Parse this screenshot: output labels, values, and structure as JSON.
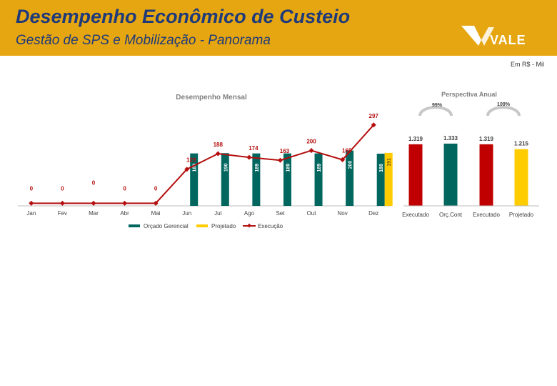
{
  "header": {
    "title": "Desempenho Econômico de Custeio",
    "subtitle": "Gestão de SPS e Mobilização - Panorama",
    "logo_text": "VALE"
  },
  "unit_label": "Em R$ - Mil",
  "colors": {
    "header_bg": "#e6a611",
    "title_text": "#1f3a7a",
    "orcado": "#00665e",
    "projetado": "#ffcc00",
    "execucao": "#b50f0f",
    "executado_bar": "#c00000"
  },
  "chart_data": [
    {
      "type": "bar",
      "title": "Desempenho Mensal",
      "categories": [
        "Jan",
        "Fev",
        "Mar",
        "Abr",
        "Mai",
        "Jun",
        "Jul",
        "Ago",
        "Set",
        "Out",
        "Nov",
        "Dez"
      ],
      "series": [
        {
          "name": "Orçado Gerencial",
          "kind": "bar",
          "color": "#00665e",
          "values": [
            null,
            null,
            null,
            null,
            null,
            189,
            190,
            189,
            189,
            189,
            200,
            188
          ]
        },
        {
          "name": "Projetado",
          "kind": "bar",
          "color": "#ffcc00",
          "values": [
            null,
            null,
            null,
            null,
            null,
            null,
            null,
            null,
            null,
            null,
            null,
            191
          ]
        },
        {
          "name": "Execução",
          "kind": "line",
          "color": "#b50f0f",
          "values": [
            0,
            0,
            0,
            0,
            0,
            129,
            188,
            174,
            163,
            200,
            165,
            297
          ]
        }
      ],
      "bar_labels": [
        "",
        "",
        "",
        "",
        "",
        "189",
        "190",
        "189",
        "189",
        "189",
        "200",
        "188"
      ],
      "projected_label": "191",
      "line_labels": [
        "0",
        "0",
        "0",
        "0",
        "0",
        "129",
        "188",
        "174",
        "163",
        "200",
        "165",
        "297"
      ],
      "ylim": [
        -10,
        310
      ],
      "legend": "bottom"
    },
    {
      "type": "bar",
      "title": "Perspectiva Anual",
      "categories": [
        "Executado",
        "Orç.Cont",
        "Executado",
        "Projetado"
      ],
      "values": [
        1319,
        1333,
        1319,
        1215
      ],
      "value_labels": [
        "1.319",
        "1.333",
        "1.319",
        "1.215"
      ],
      "colors": [
        "#c00000",
        "#00665e",
        "#c00000",
        "#ffcc00"
      ],
      "gauges": [
        {
          "label": "99%"
        },
        {
          "label": "109%"
        }
      ],
      "ylim": [
        0,
        1500
      ]
    }
  ]
}
